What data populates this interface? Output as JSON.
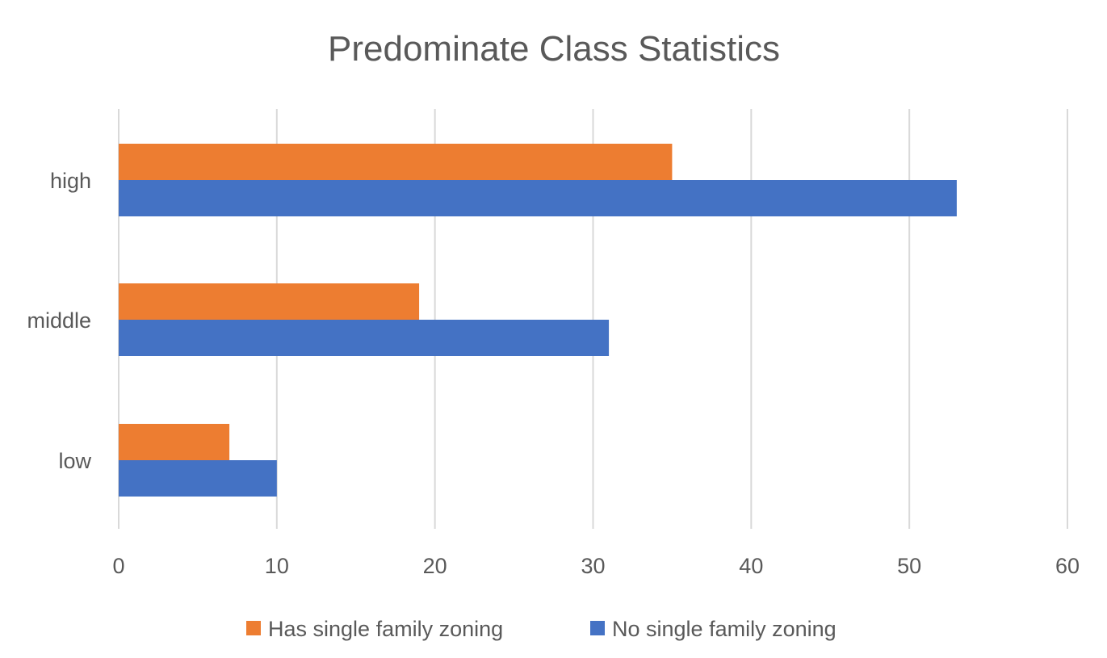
{
  "chart_data": {
    "type": "bar",
    "orientation": "horizontal",
    "title": "Predominate Class Statistics",
    "xlabel": "",
    "ylabel": "",
    "categories": [
      "high",
      "middle",
      "low"
    ],
    "series": [
      {
        "name": "Has single family zoning",
        "values": [
          35,
          19,
          7
        ],
        "color": "#ED7D31"
      },
      {
        "name": "No single family zoning",
        "values": [
          53,
          31,
          10
        ],
        "color": "#4472C4"
      }
    ],
    "xlim": [
      0,
      60
    ],
    "xticks": [
      0,
      10,
      20,
      30,
      40,
      50,
      60
    ],
    "grid": "vertical",
    "legend": "bottom"
  }
}
